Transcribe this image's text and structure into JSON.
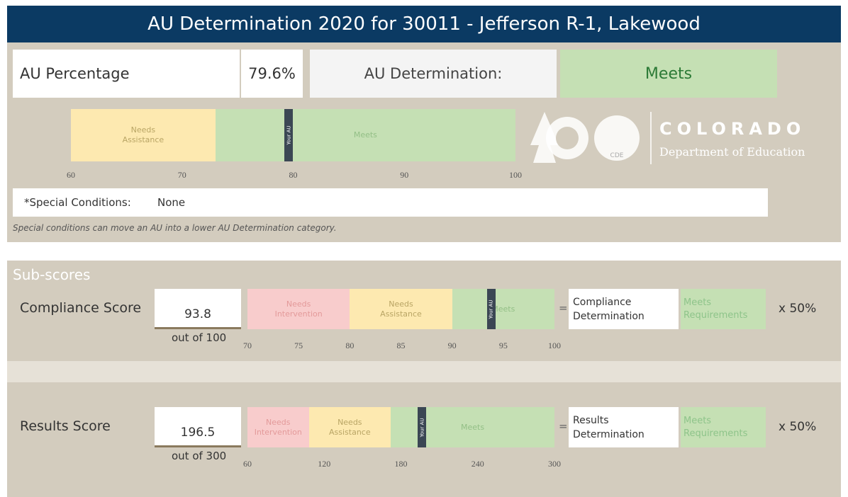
{
  "header": {
    "title": "AU Determination 2020 for 30011 - Jefferson R-1, Lakewood"
  },
  "au": {
    "percentage_label": "AU Percentage",
    "percentage": {
      "value": 79.6,
      "label": "79.6%"
    },
    "determination_label": "AU Determination:",
    "determination": "Meets"
  },
  "au_scale": {
    "min": 60,
    "max": 100,
    "ticks": [
      60,
      70,
      80,
      90,
      100
    ],
    "marker": "Your AU",
    "bands": [
      {
        "label": "Needs Assistance",
        "from": 60,
        "to": 73,
        "color": "#fde9b0",
        "text": "#b9a565"
      },
      {
        "label": "Meets",
        "from": 73,
        "to": 100,
        "color": "#c5e0b4",
        "text": "#93bf86"
      }
    ]
  },
  "logo": {
    "name": "COLORADO",
    "department": "Department of Education",
    "badge": "CDE"
  },
  "special": {
    "label": "*Special Conditions:",
    "value": "None",
    "note": "Special conditions can move an AU into a lower AU Determination category."
  },
  "subscores": {
    "title": "Sub-scores",
    "rows": [
      {
        "label": "Compliance Score",
        "score": 93.8,
        "out_of": "out of 100",
        "min": 70,
        "max": 100,
        "ticks": [
          70,
          75,
          80,
          85,
          90,
          95,
          100
        ],
        "marker": "Your AU",
        "bands": [
          {
            "label": "Needs Intervention",
            "from": 70,
            "to": 80,
            "color": "#f8cccc",
            "text": "#e39a9a"
          },
          {
            "label": "Needs Assistance",
            "from": 80,
            "to": 90,
            "color": "#fde9b0",
            "text": "#b9a565"
          },
          {
            "label": "Meets",
            "from": 90,
            "to": 100,
            "color": "#c5e0b4",
            "text": "#93bf86"
          }
        ],
        "equals": "=",
        "determination_label": "Compliance Determination",
        "determination": "Meets Requirements",
        "weight": "x 50%"
      },
      {
        "label": "Results Score",
        "score": 196.5,
        "out_of": "out of 300",
        "min": 60,
        "max": 300,
        "ticks": [
          60,
          120,
          180,
          240,
          300
        ],
        "marker": "Your AU",
        "bands": [
          {
            "label": "Needs Intervention",
            "from": 60,
            "to": 108,
            "color": "#f8cccc",
            "text": "#e39a9a"
          },
          {
            "label": "Needs Assistance",
            "from": 108,
            "to": 172,
            "color": "#fde9b0",
            "text": "#b9a565"
          },
          {
            "label": "Meets",
            "from": 172,
            "to": 300,
            "color": "#c5e0b4",
            "text": "#93bf86"
          }
        ],
        "equals": "=",
        "determination_label": "Results Determination",
        "determination": "Meets Requirements",
        "weight": "x 50%"
      }
    ]
  }
}
